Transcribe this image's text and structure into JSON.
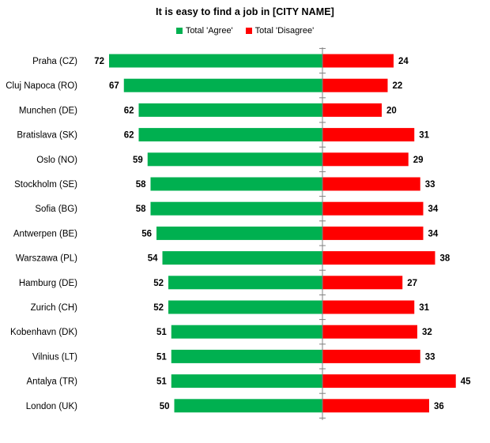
{
  "chart_data": {
    "type": "bar",
    "title": "It is easy to find a job in [CITY NAME]",
    "categories": [
      "Praha (CZ)",
      "Cluj Napoca (RO)",
      "Munchen (DE)",
      "Bratislava (SK)",
      "Oslo (NO)",
      "Stockholm (SE)",
      "Sofia (BG)",
      "Antwerpen (BE)",
      "Warszawa (PL)",
      "Hamburg (DE)",
      "Zurich (CH)",
      "Kobenhavn (DK)",
      "Vilnius (LT)",
      "Antalya (TR)",
      "London (UK)"
    ],
    "series": [
      {
        "name": "Total 'Agree'",
        "color": "#00b050",
        "direction": "left",
        "values": [
          72,
          67,
          62,
          62,
          59,
          58,
          58,
          56,
          54,
          52,
          52,
          51,
          51,
          51,
          50
        ]
      },
      {
        "name": "Total 'Disagree'",
        "color": "#ff0000",
        "direction": "right",
        "values": [
          24,
          22,
          20,
          31,
          29,
          33,
          34,
          34,
          38,
          27,
          31,
          32,
          33,
          45,
          36
        ]
      }
    ],
    "legend_position": "top",
    "grid": false,
    "orientation": "horizontal-diverging"
  }
}
